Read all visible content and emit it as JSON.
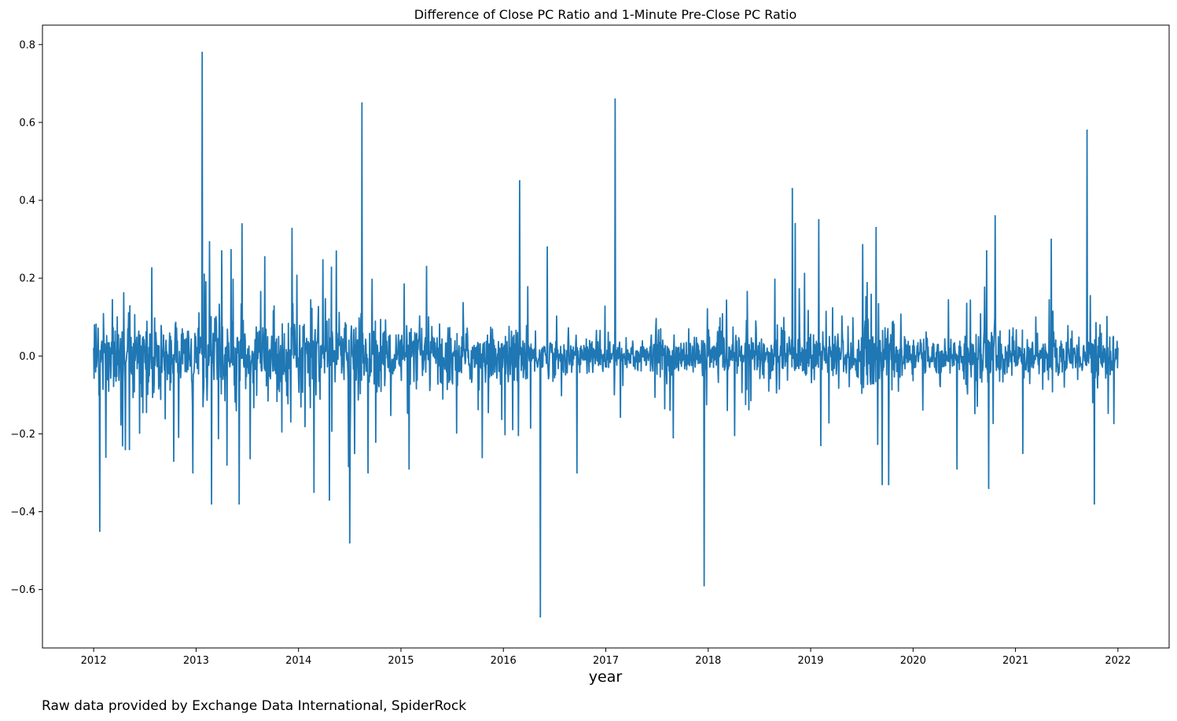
{
  "chart_data": {
    "type": "line",
    "title": "Difference of Close PC Ratio and 1-Minute Pre-Close PC Ratio",
    "xlabel": "year",
    "ylabel": "",
    "footnote": "Raw data provided by Exchange Data International, SpiderRock",
    "xlim": [
      2011.5,
      2022.5
    ],
    "ylim": [
      -0.75,
      0.85
    ],
    "xticks": [
      2012,
      2013,
      2014,
      2015,
      2016,
      2017,
      2018,
      2019,
      2020,
      2021,
      2022
    ],
    "xtick_labels": [
      "2012",
      "2013",
      "2014",
      "2015",
      "2016",
      "2017",
      "2018",
      "2019",
      "2020",
      "2021",
      "2022"
    ],
    "yticks": [
      -0.6,
      -0.4,
      -0.2,
      0.0,
      0.2,
      0.4,
      0.6,
      0.8
    ],
    "ytick_labels": [
      "−0.6",
      "−0.4",
      "−0.2",
      "0.0",
      "0.2",
      "0.4",
      "0.6",
      "0.8"
    ],
    "grid": false,
    "legend": "none",
    "color": "#1f77b4",
    "notable_points": [
      {
        "x": 2012.0,
        "y": 0.02
      },
      {
        "x": 2012.05,
        "y": -0.1
      },
      {
        "x": 2012.06,
        "y": -0.45
      },
      {
        "x": 2012.12,
        "y": -0.26
      },
      {
        "x": 2012.35,
        "y": -0.24
      },
      {
        "x": 2012.78,
        "y": -0.27
      },
      {
        "x": 2012.97,
        "y": -0.3
      },
      {
        "x": 2013.06,
        "y": 0.78
      },
      {
        "x": 2013.08,
        "y": 0.21
      },
      {
        "x": 2013.15,
        "y": -0.38
      },
      {
        "x": 2013.25,
        "y": 0.27
      },
      {
        "x": 2013.3,
        "y": -0.28
      },
      {
        "x": 2013.42,
        "y": -0.38
      },
      {
        "x": 2014.15,
        "y": -0.35
      },
      {
        "x": 2014.3,
        "y": -0.37
      },
      {
        "x": 2014.5,
        "y": -0.48
      },
      {
        "x": 2014.62,
        "y": 0.65
      },
      {
        "x": 2014.68,
        "y": -0.3
      },
      {
        "x": 2015.08,
        "y": -0.29
      },
      {
        "x": 2015.25,
        "y": 0.23
      },
      {
        "x": 2016.16,
        "y": 0.45
      },
      {
        "x": 2016.36,
        "y": -0.67
      },
      {
        "x": 2016.43,
        "y": 0.28
      },
      {
        "x": 2016.72,
        "y": -0.3
      },
      {
        "x": 2017.09,
        "y": 0.66
      },
      {
        "x": 2017.66,
        "y": -0.21
      },
      {
        "x": 2017.96,
        "y": -0.59
      },
      {
        "x": 2018.82,
        "y": 0.43
      },
      {
        "x": 2018.85,
        "y": 0.34
      },
      {
        "x": 2019.08,
        "y": 0.35
      },
      {
        "x": 2019.1,
        "y": -0.23
      },
      {
        "x": 2019.64,
        "y": 0.33
      },
      {
        "x": 2019.7,
        "y": -0.33
      },
      {
        "x": 2019.76,
        "y": -0.33
      },
      {
        "x": 2020.43,
        "y": -0.29
      },
      {
        "x": 2020.72,
        "y": 0.27
      },
      {
        "x": 2020.74,
        "y": -0.34
      },
      {
        "x": 2020.8,
        "y": 0.36
      },
      {
        "x": 2021.07,
        "y": -0.25
      },
      {
        "x": 2021.35,
        "y": 0.3
      },
      {
        "x": 2021.7,
        "y": 0.58
      },
      {
        "x": 2021.77,
        "y": -0.38
      },
      {
        "x": 2022.0,
        "y": 0.02
      }
    ]
  }
}
